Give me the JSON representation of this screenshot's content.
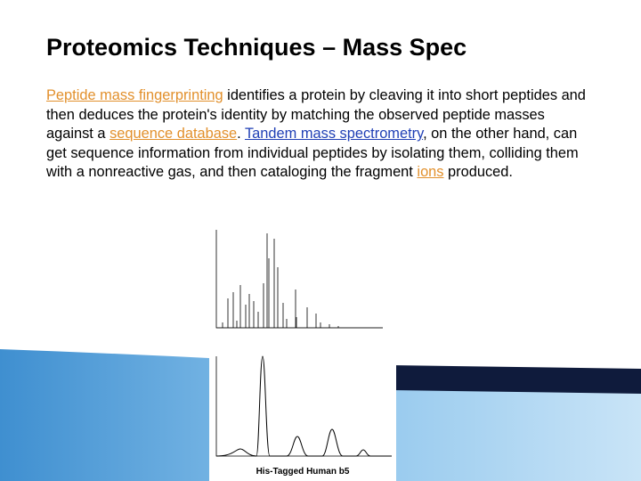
{
  "title": "Proteomics Techniques – Mass Spec",
  "paragraph": [
    " Peptide mass fingerprinting",
    " identifies a protein by cleaving it into short peptides and then deduces the protein's identity by matching the observed peptide masses against a ",
    "sequence database",
    ". ",
    "Tandem mass spectrometry",
    ", on the other hand, can get sequence information from individual peptides by isolating them, colliding them with a nonreactive gas, and then cataloging the fragment ",
    "ions",
    " produced."
  ],
  "figure_caption": "His-Tagged Human b5"
}
